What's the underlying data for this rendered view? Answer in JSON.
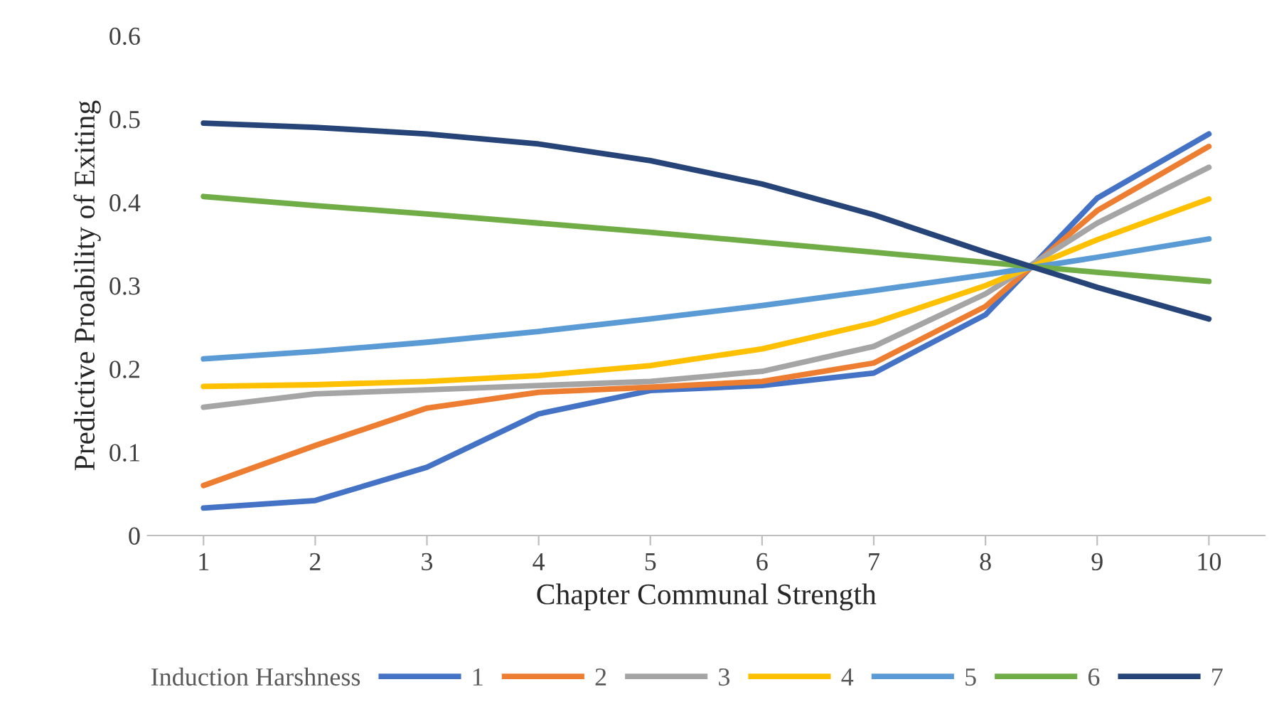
{
  "chart_data": {
    "type": "line",
    "xlabel": "Chapter Communal Strength",
    "ylabel": "Predictive Proability of Exiting",
    "legend_title": "Induction Harshness",
    "legend": "bottom",
    "grid": false,
    "marker": "none",
    "line_style": "solid",
    "categories": [
      "1",
      "2",
      "3",
      "4",
      "5",
      "6",
      "7",
      "8",
      "9",
      "10"
    ],
    "ylim": [
      0,
      0.6
    ],
    "yticks": [
      {
        "value": 0,
        "label": "0"
      },
      0.1,
      0.2,
      0.3,
      0.4,
      0.5,
      0.6
    ],
    "series": [
      {
        "name": "1",
        "color": "#4472c4",
        "values": [
          0.033,
          0.042,
          0.082,
          0.146,
          0.174,
          0.18,
          0.195,
          0.265,
          0.405,
          0.482
        ]
      },
      {
        "name": "2",
        "color": "#ed7d31",
        "values": [
          0.06,
          0.108,
          0.153,
          0.172,
          0.178,
          0.185,
          0.207,
          0.275,
          0.39,
          0.467
        ]
      },
      {
        "name": "3",
        "color": "#a5a5a5",
        "values": [
          0.154,
          0.17,
          0.175,
          0.18,
          0.185,
          0.197,
          0.227,
          0.29,
          0.375,
          0.442
        ]
      },
      {
        "name": "4",
        "color": "#ffc000",
        "values": [
          0.179,
          0.181,
          0.185,
          0.192,
          0.204,
          0.224,
          0.255,
          0.3,
          0.355,
          0.404
        ]
      },
      {
        "name": "5",
        "color": "#5b9bd5",
        "values": [
          0.212,
          0.221,
          0.232,
          0.245,
          0.26,
          0.276,
          0.294,
          0.313,
          0.334,
          0.356
        ]
      },
      {
        "name": "6",
        "color": "#70ad47",
        "values": [
          0.407,
          0.396,
          0.386,
          0.375,
          0.364,
          0.352,
          0.34,
          0.328,
          0.316,
          0.305
        ]
      },
      {
        "name": "7",
        "color": "#264478",
        "values": [
          0.495,
          0.49,
          0.482,
          0.47,
          0.45,
          0.422,
          0.385,
          0.34,
          0.298,
          0.26
        ]
      }
    ]
  }
}
